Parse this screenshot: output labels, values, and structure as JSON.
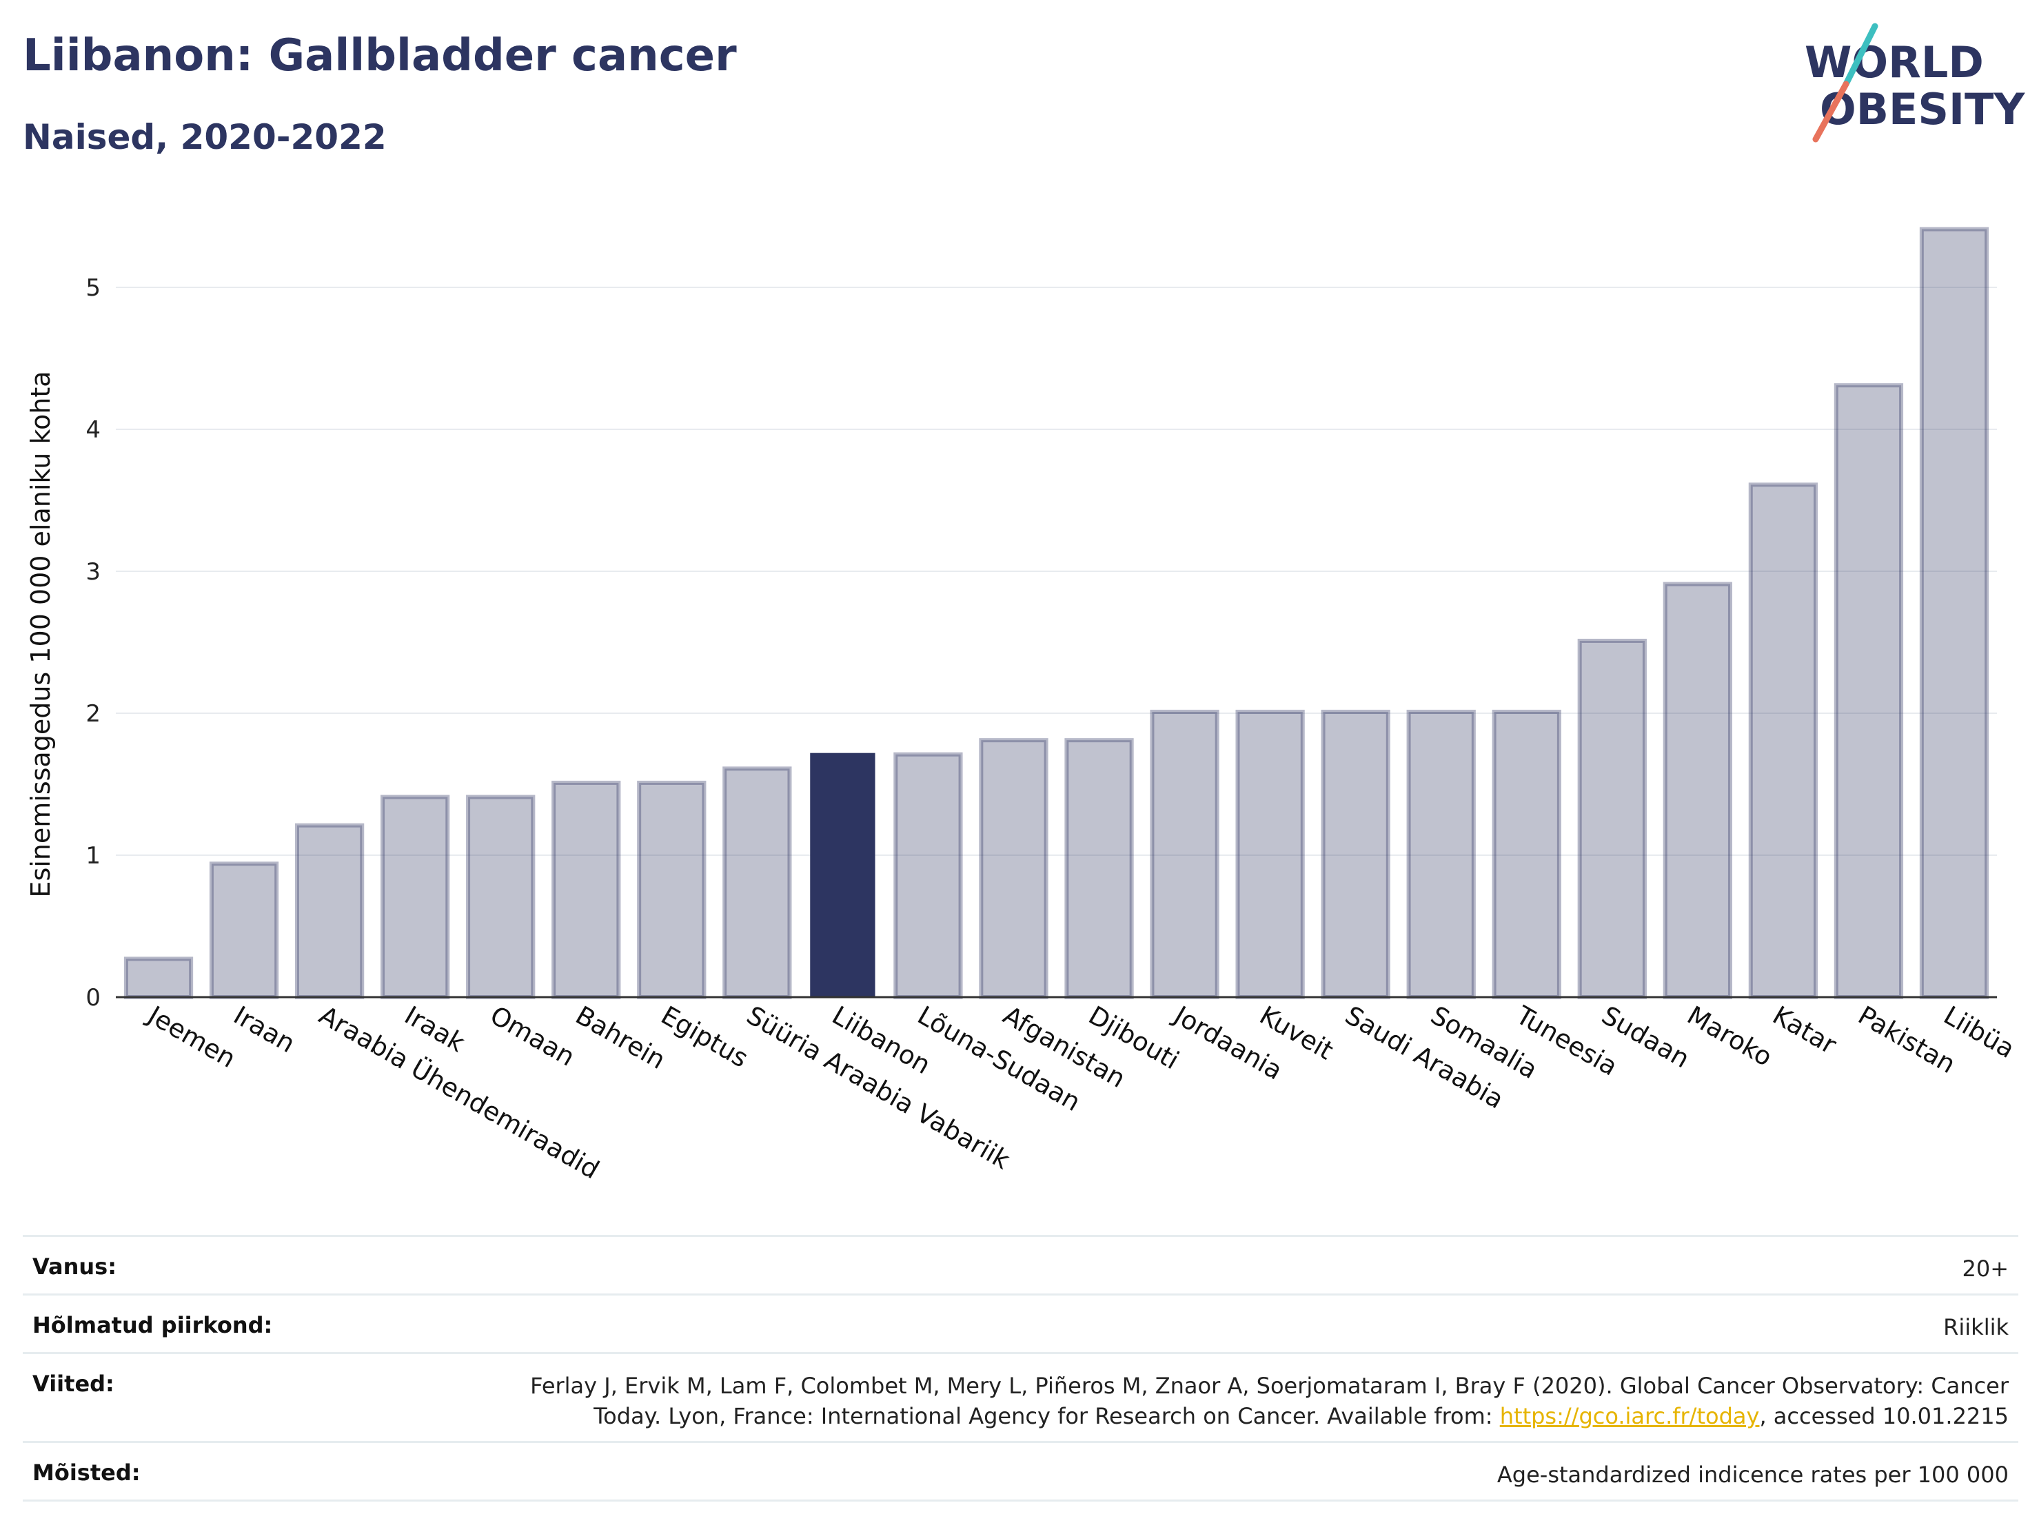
{
  "header": {
    "title": "Liibanon: Gallbladder cancer",
    "subtitle": "Naised, 2020-2022"
  },
  "logo": {
    "line1": "WORLD",
    "line2": "OBESITY"
  },
  "chart_data": {
    "type": "bar",
    "title": "Liibanon: Gallbladder cancer",
    "subtitle": "Naised, 2020-2022",
    "xlabel": "",
    "ylabel": "Esinemissagedus 100 000 elaniku kohta",
    "ylim": [
      0,
      5.5
    ],
    "yticks": [
      0,
      1,
      2,
      3,
      4,
      5
    ],
    "grid": true,
    "legend": "none",
    "highlight": "Liibanon",
    "categories": [
      "Jeemen",
      "Iraan",
      "Araabia Ühendemiraadid",
      "Iraak",
      "Omaan",
      "Bahrein",
      "Egiptus",
      "Süüria Araabia Vabariik",
      "Liibanon",
      "Lõuna-Sudaan",
      "Afganistan",
      "Djibouti",
      "Jordaania",
      "Kuveit",
      "Saudi Araabia",
      "Somaalia",
      "Tuneesia",
      "Sudaan",
      "Maroko",
      "Katar",
      "Pakistan",
      "Liibüa"
    ],
    "values": [
      0.27,
      0.94,
      1.21,
      1.41,
      1.41,
      1.51,
      1.51,
      1.61,
      1.72,
      1.71,
      1.81,
      1.81,
      2.01,
      2.01,
      2.01,
      2.01,
      2.01,
      2.51,
      2.91,
      3.61,
      4.31,
      5.41
    ],
    "colors": {
      "bar": "#2d3561",
      "highlight": "#2d3561",
      "grid": "#e8ebef",
      "axis": "#333333"
    }
  },
  "info": [
    {
      "label": "Vanus:",
      "value": "20+"
    },
    {
      "label": "Hõlmatud piirkond:",
      "value": "Riiklik"
    },
    {
      "label": "Viited:",
      "value_before": "Ferlay J, Ervik M, Lam F, Colombet M, Mery L, Piñeros M, Znaor A, Soerjomataram I, Bray F (2020). Global Cancer Observatory: Cancer Today. Lyon, France: International Agency for Research on Cancer. Available from: ",
      "link": "https://gco.iarc.fr/today",
      "value_after": ", accessed 10.01.2215"
    },
    {
      "label": "Mõisted:",
      "value": "Age-standardized indicence rates per 100 000"
    }
  ]
}
